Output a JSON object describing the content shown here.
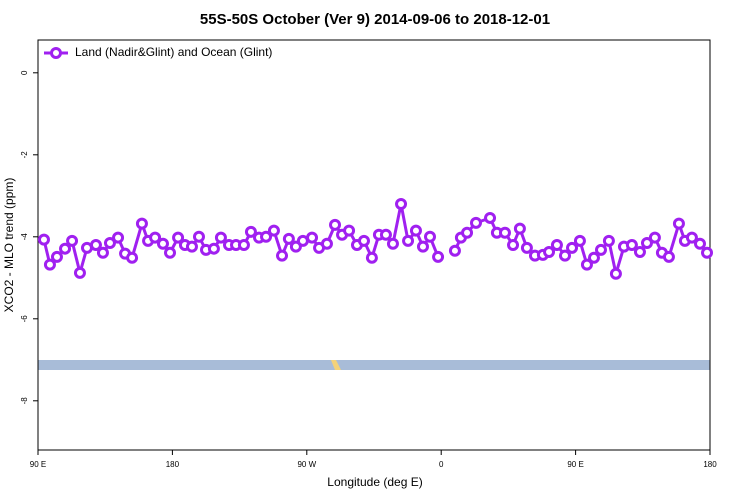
{
  "chart_data": {
    "type": "line",
    "title": "55S-50S October (Ver 9)   2014-09-06 to 2018-12-01",
    "x_label": "Longitude (deg E)",
    "y_label": "XCO2 - MLO trend (ppm)",
    "xlim": [
      90,
      540
    ],
    "ylim": [
      -9.2,
      0.8
    ],
    "xticks": [
      {
        "value": 90,
        "label": "90 E"
      },
      180,
      {
        "value": 270,
        "label": "90 W"
      },
      {
        "value": 360,
        "label": "0"
      },
      {
        "value": 450,
        "label": "90 E"
      },
      {
        "value": 540,
        "label": "180"
      }
    ],
    "yticks": [
      0,
      -2,
      -4,
      -6,
      -8
    ],
    "legend": "top-left",
    "series": [
      {
        "name": "Land (Nadir&Glint) and Ocean (Glint)",
        "color": "#a020f0",
        "x": [
          94.0,
          98.0,
          102.7,
          108.1,
          112.8,
          118.1,
          122.8,
          128.8,
          133.5,
          138.2,
          143.6,
          148.3,
          153.0,
          159.6,
          163.7,
          168.4,
          173.7,
          178.4,
          183.8,
          188.4,
          193.1,
          197.8,
          202.5,
          207.8,
          212.5,
          217.9,
          222.6,
          227.9,
          232.6,
          238.0,
          242.7,
          248.0,
          253.4,
          258.0,
          262.7,
          267.4,
          273.5,
          278.2,
          283.5,
          288.9,
          293.6,
          298.3,
          303.6,
          308.3,
          313.6,
          318.3,
          323.0,
          327.7,
          333.1,
          337.8,
          343.1,
          347.8,
          352.5,
          357.9,
          362,
          369.2,
          373.2,
          377.3,
          383.3,
          392.7,
          397.3,
          402.7,
          408.1,
          412.7,
          417.4,
          422.8,
          428.1,
          432.2,
          437.5,
          442.9,
          447.6,
          452.9,
          457.6,
          462.3,
          467.0,
          472.3,
          477.0,
          482.4,
          487.7,
          493.1,
          497.8,
          503.1,
          507.8,
          512.5,
          519.2,
          523.2,
          527.9,
          533.3,
          538.0
        ],
        "values": [
          -4.07,
          -4.68,
          -4.49,
          -4.29,
          -4.1,
          -4.88,
          -4.27,
          -4.2,
          -4.39,
          -4.15,
          -4.02,
          -4.41,
          -4.51,
          -3.68,
          -4.1,
          -4.02,
          -4.17,
          -4.39,
          -4.02,
          -4.2,
          -4.24,
          -4.0,
          -4.32,
          -4.29,
          -4.02,
          -4.2,
          -4.2,
          -4.2,
          -3.88,
          -4.02,
          -4.0,
          -3.85,
          -4.46,
          -4.05,
          -4.24,
          -4.1,
          -4.02,
          -4.27,
          -4.17,
          -3.71,
          -3.95,
          -3.85,
          -4.2,
          -4.1,
          -4.51,
          -3.95,
          -3.95,
          -4.17,
          -3.2,
          -4.1,
          -3.85,
          -4.24,
          -4.0,
          -4.49,
          null,
          -4.34,
          -4.02,
          -3.9,
          -3.66,
          -3.54,
          -3.9,
          -3.9,
          -4.2,
          -3.8,
          -4.27,
          -4.46,
          -4.44,
          -4.37,
          -4.2,
          -4.46,
          -4.27,
          -4.1,
          -4.68,
          -4.51,
          -4.32,
          -4.1,
          -4.9,
          -4.24,
          -4.2,
          -4.37,
          -4.15,
          -4.02,
          -4.39,
          -4.49,
          -3.68,
          -4.1,
          -4.02,
          -4.17,
          -4.39
        ]
      }
    ]
  }
}
